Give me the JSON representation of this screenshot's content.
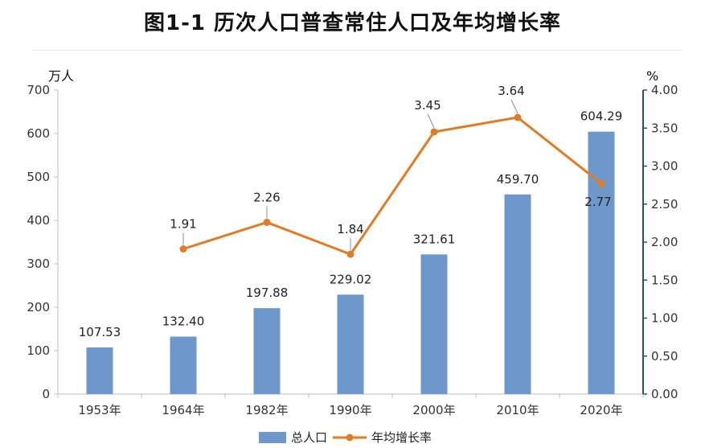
{
  "title": "图1-1   历次人口普查常住人口及年均增长率",
  "chart_data": {
    "type": "bar",
    "categories": [
      "1953年",
      "1964年",
      "1982年",
      "1990年",
      "2000年",
      "2010年",
      "2020年"
    ],
    "series": [
      {
        "name": "总人口",
        "type": "bar",
        "axis": "left",
        "color": "#6e97cc",
        "values": [
          107.53,
          132.4,
          197.88,
          229.02,
          321.61,
          459.7,
          604.29
        ],
        "labels": [
          "107.53",
          "132.40",
          "197.88",
          "229.02",
          "321.61",
          "459.70",
          "604.29"
        ]
      },
      {
        "name": "年均增长率",
        "type": "line",
        "axis": "right",
        "color": "#e07b28",
        "values": [
          null,
          1.91,
          2.26,
          1.84,
          3.45,
          3.64,
          2.77
        ],
        "labels": [
          "",
          "1.91",
          "2.26",
          "1.84",
          "3.45",
          "3.64",
          "2.77"
        ]
      }
    ],
    "ylabel_left": "万人",
    "ylabel_right": "%",
    "ylim_left": [
      0,
      700
    ],
    "ylim_right": [
      0,
      4.0
    ],
    "yticks_left": [
      "0",
      "100",
      "200",
      "300",
      "400",
      "500",
      "600",
      "700"
    ],
    "yticks_right": [
      "0.00",
      "0.50",
      "1.00",
      "1.50",
      "2.00",
      "2.50",
      "3.00",
      "3.50",
      "4.00"
    ],
    "grid": false,
    "legend_position": "bottom"
  }
}
